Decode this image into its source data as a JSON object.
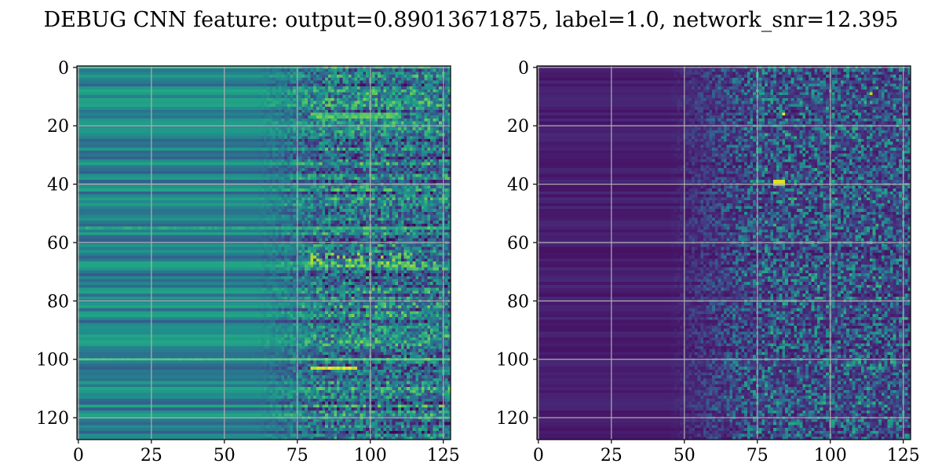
{
  "title": "DEBUG CNN feature: output=0.89013671875, label=1.0, network_snr=12.395",
  "chart_data": [
    {
      "type": "heatmap",
      "colormap": "viridis",
      "rows": 128,
      "cols": 128,
      "xlim": [
        0,
        127
      ],
      "ylim": [
        127,
        0
      ],
      "xticks": [
        0,
        25,
        50,
        75,
        100,
        125
      ],
      "yticks": [
        0,
        20,
        40,
        60,
        80,
        100,
        120
      ],
      "grid": true,
      "value_profile": "smooth horizontal bands for columns 0-70; noisy speckled texture for columns 75-127; bright spots near row 103 cols 85-95 and rows 15-17, 60-68"
    },
    {
      "type": "heatmap",
      "colormap": "viridis",
      "rows": 128,
      "cols": 128,
      "xlim": [
        0,
        127
      ],
      "ylim": [
        127,
        0
      ],
      "xticks": [
        0,
        25,
        50,
        75,
        100,
        125
      ],
      "yticks": [
        0,
        20,
        40,
        60,
        80,
        100,
        120
      ],
      "grid": true,
      "value_profile": "mostly dark purple for columns 0-50; increasing sparse noise to the right; bright yellow spots near row 16 col 84 and row 39-40 cols 82-84"
    }
  ]
}
